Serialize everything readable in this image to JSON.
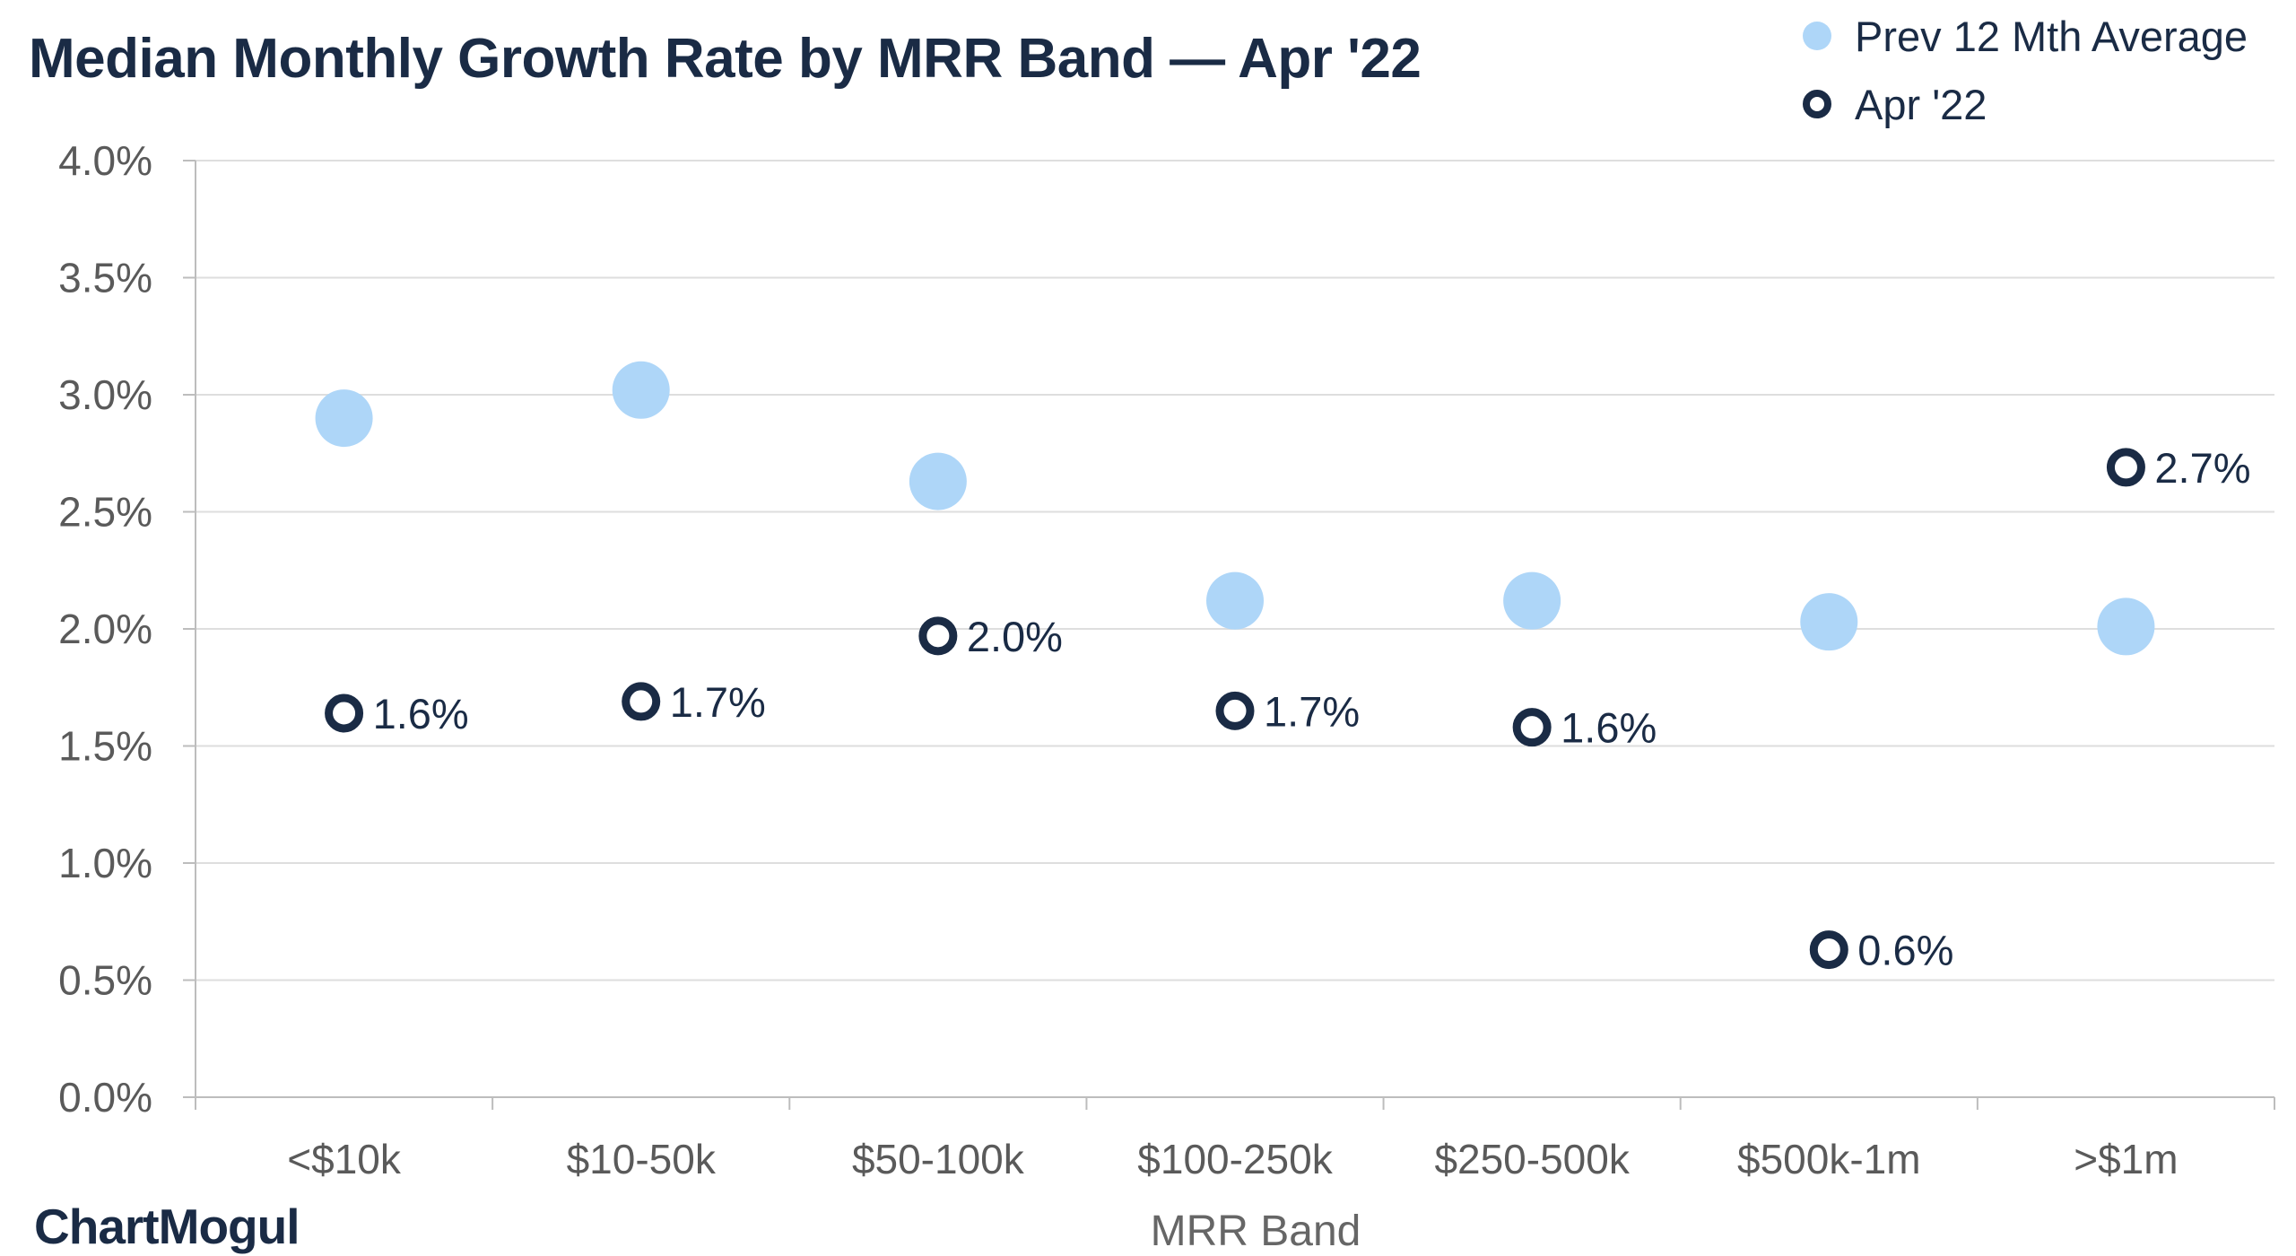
{
  "chart_data": {
    "type": "scatter",
    "title": "Median Monthly Growth Rate by MRR Band — Apr '22",
    "xlabel": "MRR Band",
    "ylabel": "",
    "categories": [
      "<$10k",
      "$10-50k",
      "$50-100k",
      "$100-250k",
      "$250-500k",
      "$500k-1m",
      ">$1m"
    ],
    "ylim": [
      0,
      4.0
    ],
    "yticks": [
      "0.0%",
      "0.5%",
      "1.0%",
      "1.5%",
      "2.0%",
      "2.5%",
      "3.0%",
      "3.5%",
      "4.0%"
    ],
    "grid": true,
    "legend_position": "top-right",
    "series": [
      {
        "name": "Prev 12 Mth Average",
        "color": "#aed6f8",
        "marker": "filled-circle",
        "values": [
          2.9,
          3.02,
          2.63,
          2.12,
          2.12,
          2.03,
          2.01
        ]
      },
      {
        "name": "Apr '22",
        "color": "#1a2b45",
        "marker": "hollow-circle",
        "values": [
          1.64,
          1.69,
          1.97,
          1.65,
          1.58,
          0.63,
          2.69
        ],
        "labels": [
          "1.6%",
          "1.7%",
          "2.0%",
          "1.7%",
          "1.6%",
          "0.6%",
          "2.7%"
        ]
      }
    ]
  },
  "branding": {
    "logo_text": "ChartMogul"
  }
}
